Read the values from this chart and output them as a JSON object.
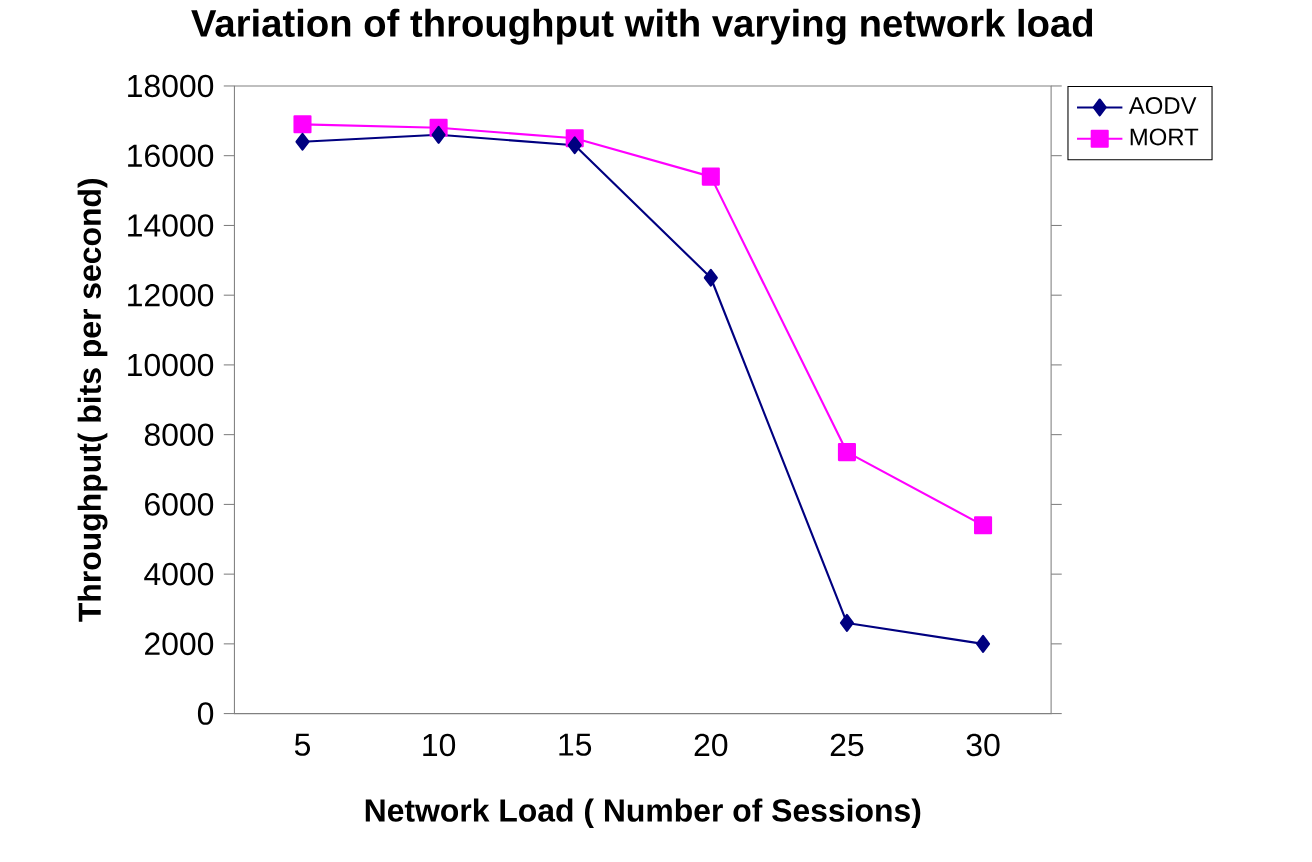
{
  "chart_data": {
    "type": "line",
    "title": "Variation of throughput with varying network load",
    "xlabel": "Network Load ( Number of Sessions)",
    "ylabel": "Throughput( bits per second)",
    "categories": [
      "5",
      "10",
      "15",
      "20",
      "25",
      "30"
    ],
    "series": [
      {
        "name": "AODV",
        "color": "#000080",
        "marker": "diamond",
        "values": [
          16400,
          16600,
          16300,
          12500,
          2600,
          2000
        ]
      },
      {
        "name": "MORT",
        "color": "#ff00ff",
        "marker": "square",
        "values": [
          16900,
          16800,
          16500,
          15400,
          7500,
          5400
        ]
      }
    ],
    "ylim": [
      0,
      18000
    ],
    "yticks": [
      0,
      2000,
      4000,
      6000,
      8000,
      10000,
      12000,
      14000,
      16000,
      18000
    ],
    "grid": false,
    "legend": "top right",
    "line_style": "solid"
  }
}
